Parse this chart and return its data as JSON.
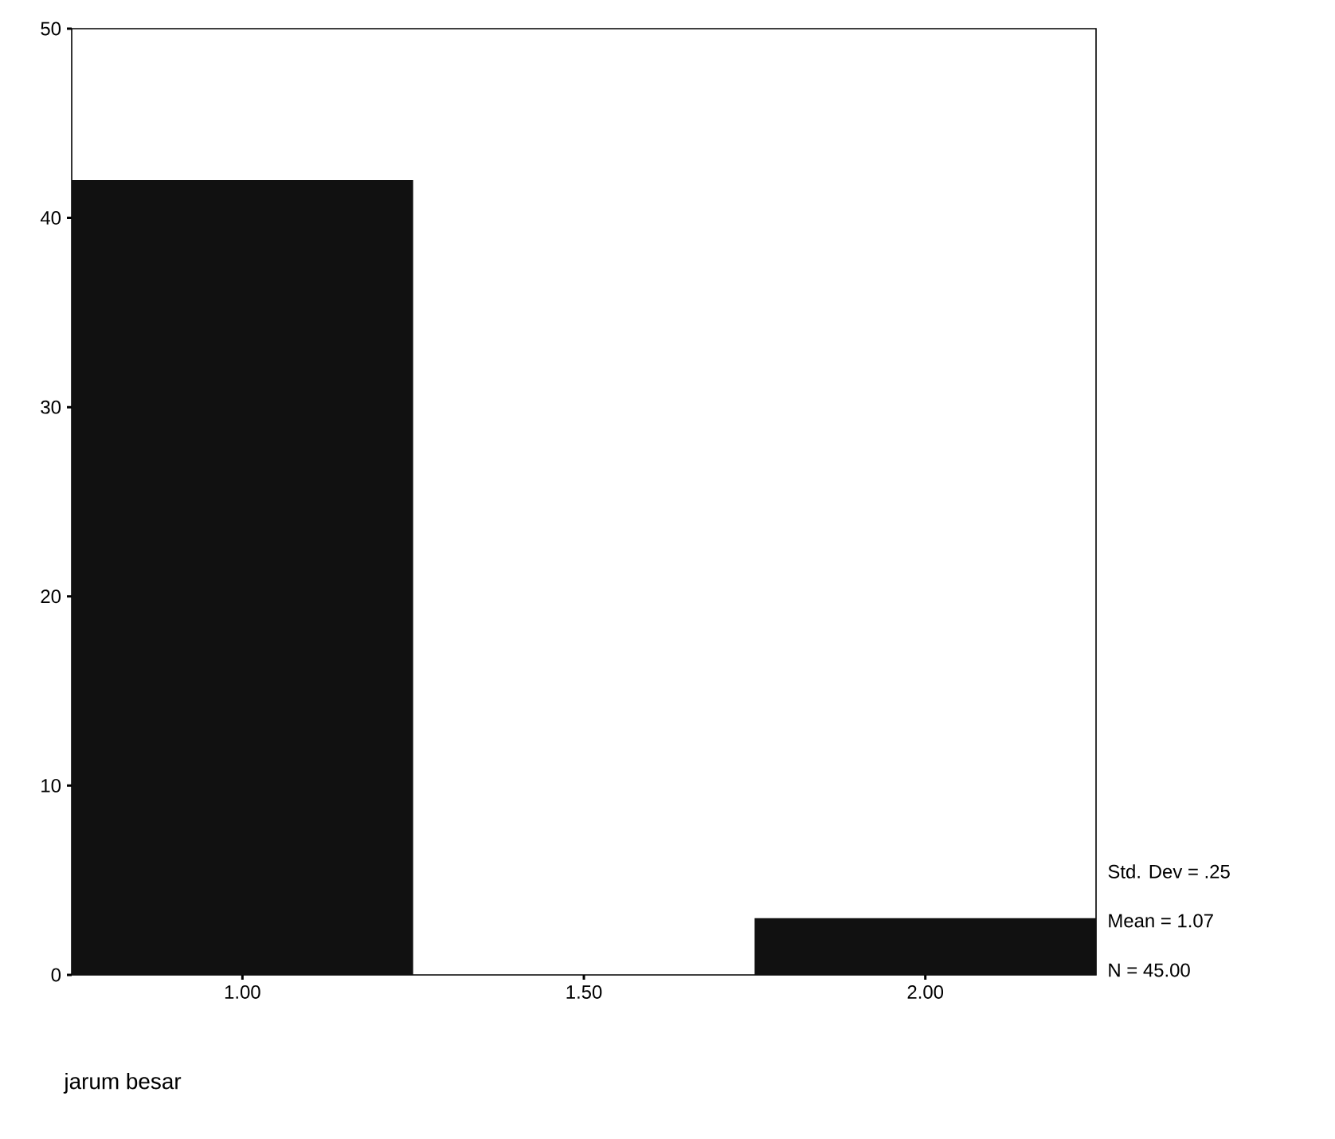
{
  "chart_data": {
    "type": "histogram",
    "xlabel": "jarum besar",
    "bins": [
      0.75,
      1.25,
      1.75,
      2.25
    ],
    "values": [
      42,
      0,
      3
    ],
    "color": "#111111",
    "xlim": [
      0.75,
      2.25
    ],
    "ylim": [
      0,
      50
    ],
    "xticks": [
      {
        "value": 1,
        "label": "1.00"
      },
      {
        "value": 1.5,
        "label": "1.50"
      },
      {
        "value": 2,
        "label": "2.00"
      }
    ],
    "yticks": [
      0,
      10,
      20,
      30,
      40,
      50
    ],
    "annotations": [
      "Std. Dev = .25",
      "Mean = 1.07",
      "N = 45.00"
    ]
  }
}
